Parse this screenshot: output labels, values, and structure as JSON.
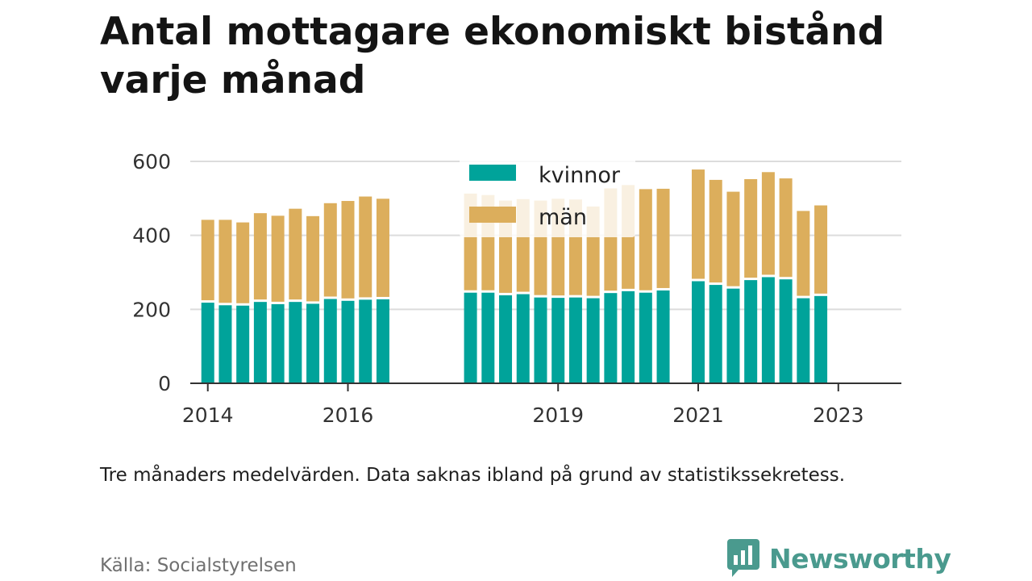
{
  "title": "Antal mottagare ekonomiskt bistånd varje månad",
  "note": "Tre månaders medelvärden. Data saknas ibland på grund av statistikssekretess.",
  "source": "Källa: Socialstyrelsen",
  "brand": {
    "name": "Newsworthy",
    "color": "#4a9a8e"
  },
  "chart_data": {
    "type": "bar",
    "stacked": true,
    "x_unit": "year (decimal)",
    "x_ticks": [
      2014,
      2016,
      2019,
      2021,
      2023
    ],
    "x_tick_labels": [
      "2014",
      "2016",
      "2019",
      "2021",
      "2023"
    ],
    "xlim": [
      2013.75,
      2023.9
    ],
    "ylim": [
      0,
      600
    ],
    "y_ticks": [
      0,
      200,
      400,
      600
    ],
    "grid": true,
    "legend": "top-center",
    "x": [
      2014.0,
      2014.25,
      2014.5,
      2014.75,
      2015.0,
      2015.25,
      2015.5,
      2015.75,
      2016.0,
      2016.25,
      2016.5,
      2017.75,
      2018.0,
      2018.25,
      2018.5,
      2018.75,
      2019.0,
      2019.25,
      2019.5,
      2019.75,
      2020.0,
      2020.25,
      2020.5,
      2021.0,
      2021.25,
      2021.5,
      2021.75,
      2022.0,
      2022.25,
      2022.5,
      2022.75
    ],
    "series": [
      {
        "name": "kvinnor",
        "color": "#00a39a",
        "values": [
          218,
          211,
          210,
          220,
          214,
          220,
          215,
          228,
          223,
          226,
          227,
          245,
          245,
          238,
          241,
          232,
          231,
          232,
          230,
          244,
          249,
          245,
          251,
          276,
          266,
          256,
          279,
          287,
          281,
          230,
          236
        ]
      },
      {
        "name": "män",
        "color": "#dcae5c",
        "values": [
          224,
          231,
          225,
          240,
          239,
          252,
          237,
          259,
          270,
          279,
          272,
          268,
          264,
          256,
          257,
          262,
          268,
          265,
          248,
          283,
          287,
          280,
          275,
          302,
          284,
          262,
          273,
          284,
          273,
          236,
          245
        ]
      }
    ]
  }
}
